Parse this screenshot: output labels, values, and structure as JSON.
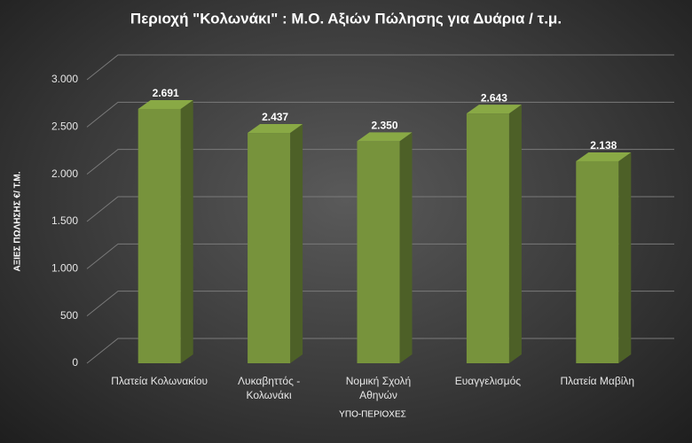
{
  "chart_data": {
    "type": "bar3d",
    "title": "Περιοχή \"Κολωνάκι\" : Μ.Ο. Αξιών Πώλησης για Δυάρια / τ.μ.",
    "y_label": "ΑΞΙΕΣ ΠΩΛΗΣΗΣ €/ Τ.Μ.",
    "x_label": "ΥΠΟ-ΠΕΡΙΟΧΕΣ",
    "categories": [
      "Πλατεία Κολωνακίου",
      "Λυκαβηττός - Κολωνάκι",
      "Νομική Σχολή Αθηνών",
      "Ευαγγελισμός",
      "Πλατεία Μαβίλη"
    ],
    "values": [
      2691,
      2437,
      2350,
      2643,
      2138
    ],
    "value_labels": [
      "2.691",
      "2.437",
      "2.350",
      "2.643",
      "2.138"
    ],
    "color": "#77933c",
    "ylim": [
      0,
      3000
    ],
    "yticks": [
      0,
      500,
      {
        "value": 1000,
        "label": "1.000"
      },
      {
        "value": 1500,
        "label": "1.500"
      },
      {
        "value": 2000,
        "label": "2.000"
      },
      {
        "value": 2500,
        "label": "2.500"
      },
      {
        "value": 3000,
        "label": "3.000"
      }
    ],
    "grid": true
  }
}
